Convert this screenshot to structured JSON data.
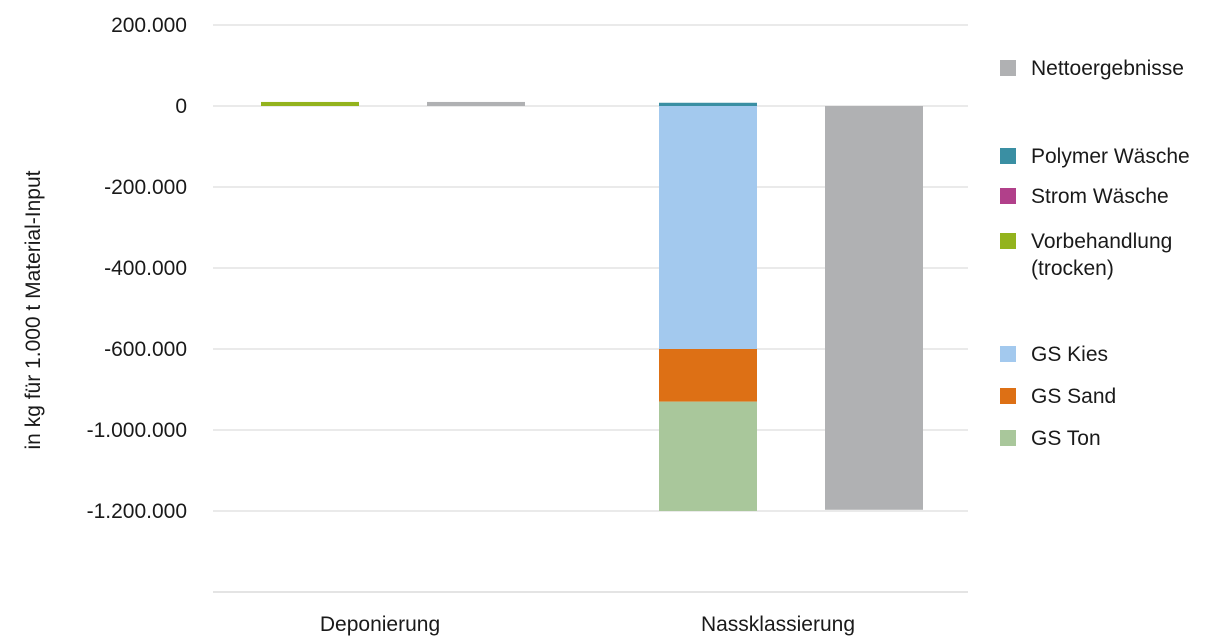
{
  "chart_data": {
    "type": "bar",
    "stacked": true,
    "ylabel": "in kg für 1.000 t Material-Input",
    "ylim": [
      -1400000,
      200000
    ],
    "yticks": [
      {
        "value": 200000,
        "label": "200.000"
      },
      {
        "value": 0,
        "label": "0"
      },
      {
        "value": -200000,
        "label": "-200.000"
      },
      {
        "value": -400000,
        "label": "-400.000"
      },
      {
        "value": -600000,
        "label": "-600.000"
      },
      {
        "value": -1000000,
        "label": "-1.000.000"
      },
      {
        "value": -1200000,
        "label": "-1.200.000"
      }
    ],
    "categories": [
      "Deponierung",
      "Nassklassierung"
    ],
    "bars": [
      {
        "category": "Deponierung",
        "kind": "components",
        "segments": [
          {
            "series": "Vorbehandlung (trocken)",
            "value": 10000
          }
        ]
      },
      {
        "category": "Deponierung",
        "kind": "net",
        "segments": [
          {
            "series": "Nettoergebnisse",
            "value": 10000
          }
        ]
      },
      {
        "category": "Nassklassierung",
        "kind": "components",
        "segments": [
          {
            "series": "Polymer Wäsche",
            "value": 8000
          },
          {
            "series": "GS Kies",
            "value": -600000
          },
          {
            "series": "GS Sand",
            "value": -260000
          },
          {
            "series": "GS Ton",
            "value": -340000
          }
        ]
      },
      {
        "category": "Nassklassierung",
        "kind": "net",
        "segments": [
          {
            "series": "Nettoergebnisse",
            "value": -1197000
          }
        ]
      }
    ],
    "series": [
      {
        "name": "Nettoergebnisse",
        "color": "#b0b1b3"
      },
      {
        "name": "Polymer Wäsche",
        "color": "#3a8fa3"
      },
      {
        "name": "Strom Wäsche",
        "color": "#b1408a"
      },
      {
        "name": "Vorbehandlung",
        "name_line2": "(trocken)",
        "color": "#93b31d"
      },
      {
        "name": "GS Kies",
        "color": "#a3c9ee"
      },
      {
        "name": "GS Sand",
        "color": "#dd7015"
      },
      {
        "name": "GS Ton",
        "color": "#a9c79b"
      }
    ],
    "grid": true,
    "legend_position": "right"
  }
}
